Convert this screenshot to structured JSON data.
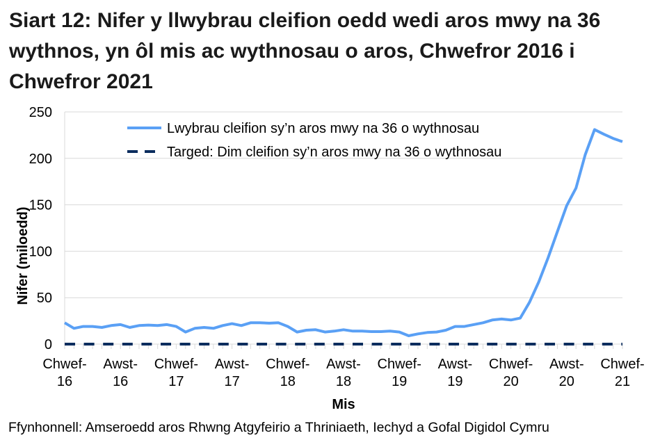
{
  "chart_data": {
    "type": "line",
    "title": "Siart 12: Nifer y llwybrau cleifion oedd wedi aros mwy na 36 wythnos, yn ôl mis ac wythnosau o aros, Chwefror 2016 i Chwefror 2021",
    "xlabel": "Mis",
    "ylabel": "Nifer (miloedd)",
    "ylim": [
      0,
      250
    ],
    "yticks": [
      0,
      50,
      100,
      150,
      200,
      250
    ],
    "grid": "horizontal",
    "legend_placement": "top",
    "x_start": "2016-02",
    "x_end": "2021-02",
    "xtick_labels": [
      {
        "month": "2016-02",
        "line1": "Chwef-",
        "line2": "16"
      },
      {
        "month": "2016-08",
        "line1": "Awst-",
        "line2": "16"
      },
      {
        "month": "2017-02",
        "line1": "Chwef-",
        "line2": "17"
      },
      {
        "month": "2017-08",
        "line1": "Awst-",
        "line2": "17"
      },
      {
        "month": "2018-02",
        "line1": "Chwef-",
        "line2": "18"
      },
      {
        "month": "2018-08",
        "line1": "Awst-",
        "line2": "18"
      },
      {
        "month": "2019-02",
        "line1": "Chwef-",
        "line2": "19"
      },
      {
        "month": "2019-08",
        "line1": "Awst-",
        "line2": "19"
      },
      {
        "month": "2020-02",
        "line1": "Chwef-",
        "line2": "20"
      },
      {
        "month": "2020-08",
        "line1": "Awst-",
        "line2": "20"
      },
      {
        "month": "2021-02",
        "line1": "Chwef-",
        "line2": "21"
      }
    ],
    "series": [
      {
        "name": "Lwybrau cleifion sy’n aros mwy na 36 o wythnosau",
        "color": "#5aa0f5",
        "style": "solid",
        "values": [
          23,
          17,
          19,
          19,
          18,
          20,
          21,
          18,
          20,
          20.5,
          20,
          21,
          19,
          13,
          17,
          18,
          17,
          20,
          22,
          20,
          23,
          23,
          22.5,
          23,
          19,
          13,
          15,
          15.5,
          13,
          14,
          15.5,
          14,
          14,
          13.5,
          13.5,
          14,
          13,
          9,
          11,
          12.5,
          13,
          15,
          19,
          19,
          21,
          23,
          26,
          27,
          26,
          28,
          45,
          67,
          93,
          121,
          149,
          168,
          204,
          231,
          226,
          221.5,
          218
        ]
      },
      {
        "name": "Targed: Dim cleifion sy’n aros mwy na 36 o wythnosau",
        "color": "#0b2d5e",
        "style": "dashed",
        "values": [
          0,
          0,
          0,
          0,
          0,
          0,
          0,
          0,
          0,
          0,
          0,
          0,
          0,
          0,
          0,
          0,
          0,
          0,
          0,
          0,
          0,
          0,
          0,
          0,
          0,
          0,
          0,
          0,
          0,
          0,
          0,
          0,
          0,
          0,
          0,
          0,
          0,
          0,
          0,
          0,
          0,
          0,
          0,
          0,
          0,
          0,
          0,
          0,
          0,
          0,
          0,
          0,
          0,
          0,
          0,
          0,
          0,
          0,
          0,
          0,
          0
        ]
      }
    ]
  },
  "source": "Ffynhonnell: Amseroedd aros Rhwng Atgyfeirio a Thriniaeth, Iechyd a Gofal Digidol Cymru"
}
